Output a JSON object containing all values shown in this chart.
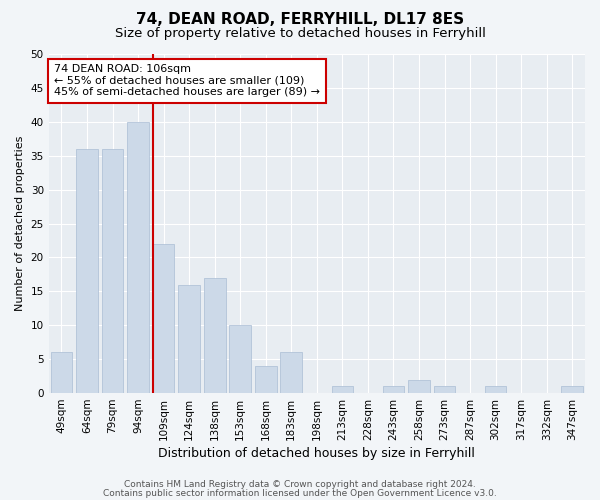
{
  "title1": "74, DEAN ROAD, FERRYHILL, DL17 8ES",
  "title2": "Size of property relative to detached houses in Ferryhill",
  "xlabel": "Distribution of detached houses by size in Ferryhill",
  "ylabel": "Number of detached properties",
  "categories": [
    "49sqm",
    "64sqm",
    "79sqm",
    "94sqm",
    "109sqm",
    "124sqm",
    "138sqm",
    "153sqm",
    "168sqm",
    "183sqm",
    "198sqm",
    "213sqm",
    "228sqm",
    "243sqm",
    "258sqm",
    "273sqm",
    "287sqm",
    "302sqm",
    "317sqm",
    "332sqm",
    "347sqm"
  ],
  "values": [
    6,
    36,
    36,
    40,
    22,
    16,
    17,
    10,
    4,
    6,
    0,
    1,
    0,
    1,
    2,
    1,
    0,
    1,
    0,
    0,
    1
  ],
  "bar_color": "#ccd9e8",
  "bar_edge_color": "#aabdd4",
  "highlight_line_color": "#cc0000",
  "annotation_text": "74 DEAN ROAD: 106sqm\n← 55% of detached houses are smaller (109)\n45% of semi-detached houses are larger (89) →",
  "annotation_box_color": "#ffffff",
  "annotation_box_edge": "#cc0000",
  "ylim": [
    0,
    50
  ],
  "yticks": [
    0,
    5,
    10,
    15,
    20,
    25,
    30,
    35,
    40,
    45,
    50
  ],
  "footer1": "Contains HM Land Registry data © Crown copyright and database right 2024.",
  "footer2": "Contains public sector information licensed under the Open Government Licence v3.0.",
  "bg_color": "#f2f5f8",
  "plot_bg_color": "#e8edf2",
  "grid_color": "#ffffff",
  "title1_fontsize": 11,
  "title2_fontsize": 9.5,
  "xlabel_fontsize": 9,
  "ylabel_fontsize": 8,
  "tick_fontsize": 7.5,
  "annotation_fontsize": 8,
  "footer_fontsize": 6.5
}
